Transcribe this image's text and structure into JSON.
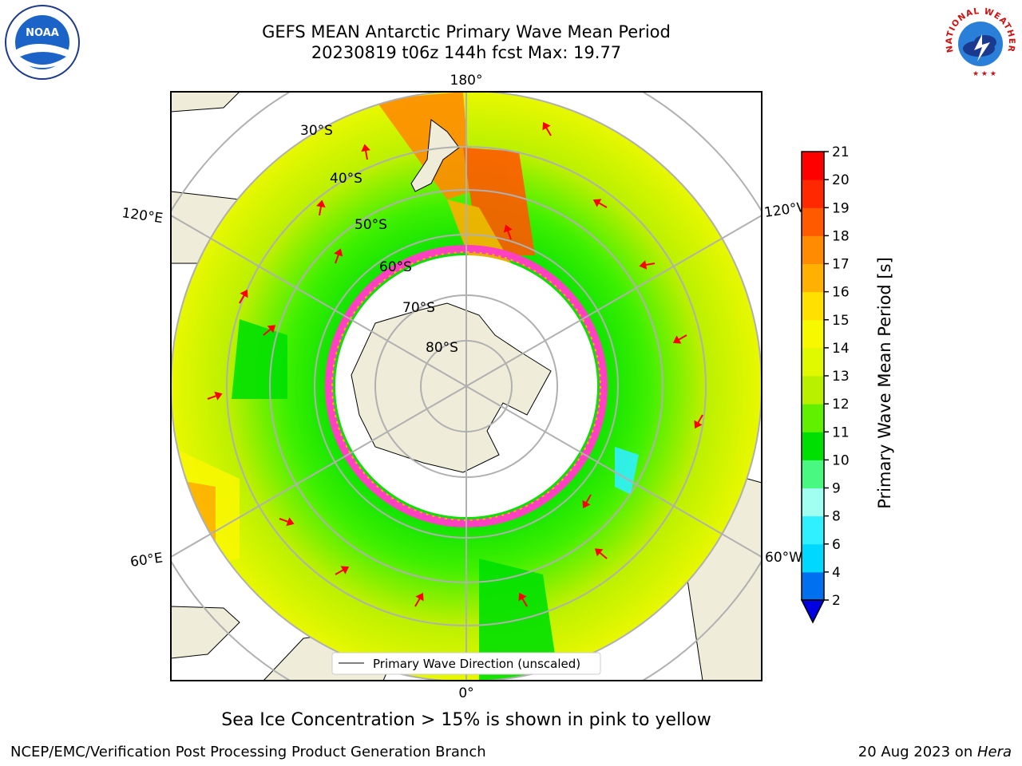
{
  "title_line1": "GEFS MEAN Antarctic Primary Wave Mean Period",
  "title_line2": "20230819 t06z 144h fcst   Max: 19.77",
  "map_labels": {
    "lon_top": "180°",
    "lon_bottom": "0°",
    "lon_left_upper": "120°E",
    "lon_right_upper": "120°W",
    "lon_left_lower": "60°E",
    "lon_right_lower": "60°W",
    "lat_30": "30°S",
    "lat_40": "40°S",
    "lat_50": "50°S",
    "lat_60": "60°S",
    "lat_70": "70°S",
    "lat_80": "80°S"
  },
  "legend_label": "Primary Wave Direction (unscaled)",
  "colorbar": {
    "label": "Primary Wave Mean Period [s]",
    "ticks": [
      "2",
      "4",
      "6",
      "8",
      "9",
      "10",
      "11",
      "12",
      "13",
      "14",
      "15",
      "16",
      "17",
      "18",
      "19",
      "20",
      "21"
    ],
    "colors": [
      "#0070f0",
      "#00d8ff",
      "#30f0ff",
      "#a0fff0",
      "#48f880",
      "#00e000",
      "#60f000",
      "#b8f000",
      "#e0f800",
      "#f8f800",
      "#ffe000",
      "#ffb000",
      "#ff8c00",
      "#ff5a00",
      "#ff2800",
      "#ff0000"
    ],
    "under_color": "#0000e0"
  },
  "caption": "Sea Ice Concentration > 15% is shown in pink to yellow",
  "footer_left": "NCEP/EMC/Verification Post Processing Product Generation Branch",
  "footer_right_date": "20 Aug 2023 on ",
  "footer_right_host": "Hera",
  "logos": {
    "left": "NOAA",
    "right_arc": "NATIONAL WEATHER SERVICE"
  }
}
